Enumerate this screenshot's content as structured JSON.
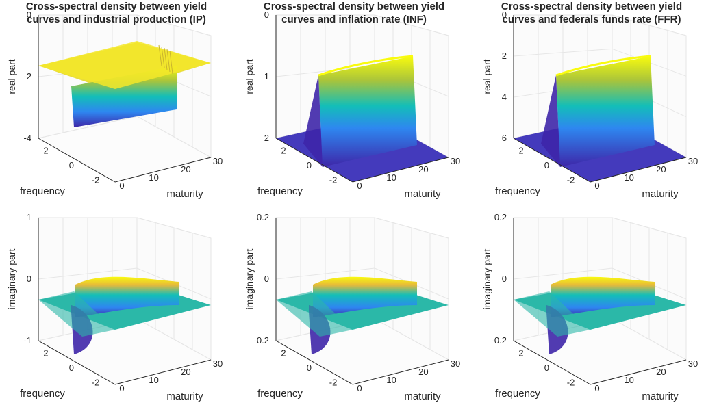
{
  "chart_data": [
    {
      "type": "surface",
      "title": [
        "Cross-spectral density between yield",
        "curves and industrial production (IP)"
      ],
      "zlabel": "real part",
      "xlabel": "maturity",
      "ylabel": "frequency",
      "xticks": [
        "0",
        "10",
        "20",
        "30"
      ],
      "yticks": [
        "2",
        "0",
        "-2"
      ],
      "zticks": [
        "0",
        "-2",
        "-4"
      ],
      "xlim": [
        0,
        30
      ],
      "ylim": [
        -3.14,
        3.14
      ],
      "zlim": [
        -4,
        0
      ],
      "band": {
        "frequency_range": [
          -0.5,
          0.5
        ],
        "floor": 0,
        "peak": -3.5,
        "profile": "dip"
      },
      "grid": true
    },
    {
      "type": "surface",
      "title": [
        "Cross-spectral density between yield",
        "curves and inflation rate (INF)"
      ],
      "zlabel": "real part",
      "xlabel": "maturity",
      "ylabel": "frequency",
      "xticks": [
        "0",
        "10",
        "20",
        "30"
      ],
      "yticks": [
        "2",
        "0",
        "-2"
      ],
      "zticks": [
        "0",
        "1",
        "2"
      ],
      "xlim": [
        0,
        30
      ],
      "ylim": [
        -3.14,
        3.14
      ],
      "zlim": [
        0,
        2
      ],
      "band": {
        "frequency_range": [
          -0.5,
          0.5
        ],
        "floor": 0,
        "peak": 1.6,
        "profile": "plateau"
      },
      "grid": true
    },
    {
      "type": "surface",
      "title": [
        "Cross-spectral density between yield",
        "curves and federals funds rate (FFR)"
      ],
      "zlabel": "real part",
      "xlabel": "maturity",
      "ylabel": "frequency",
      "xticks": [
        "0",
        "10",
        "20",
        "30"
      ],
      "yticks": [
        "2",
        "0",
        "-2"
      ],
      "zticks": [
        "0",
        "2",
        "4",
        "6"
      ],
      "xlim": [
        0,
        30
      ],
      "ylim": [
        -3.14,
        3.14
      ],
      "zlim": [
        0,
        6
      ],
      "band": {
        "frequency_range": [
          -0.5,
          0.5
        ],
        "floor": 0,
        "peak": 3.5,
        "profile": "plateau"
      },
      "grid": true
    },
    {
      "type": "surface",
      "title": [],
      "zlabel": "imaginary part",
      "xlabel": "maturity",
      "ylabel": "frequency",
      "xticks": [
        "0",
        "10",
        "20",
        "30"
      ],
      "yticks": [
        "2",
        "0",
        "-2"
      ],
      "zticks": [
        "1",
        "0",
        "-1"
      ],
      "xlim": [
        0,
        30
      ],
      "ylim": [
        -3.14,
        3.14
      ],
      "zlim": [
        -1.3,
        1.3
      ],
      "band": {
        "frequency_range": [
          -0.5,
          0.5
        ],
        "floor": 0,
        "peak": 1.0,
        "profile": "odd"
      },
      "grid": true
    },
    {
      "type": "surface",
      "title": [],
      "zlabel": "imaginary part",
      "xlabel": "maturity",
      "ylabel": "frequency",
      "xticks": [
        "0",
        "10",
        "20",
        "30"
      ],
      "yticks": [
        "2",
        "0",
        "-2"
      ],
      "zticks": [
        "0.2",
        "0",
        "-0.2"
      ],
      "xlim": [
        0,
        30
      ],
      "ylim": [
        -3.14,
        3.14
      ],
      "zlim": [
        -0.22,
        0.22
      ],
      "band": {
        "frequency_range": [
          -0.5,
          0.5
        ],
        "floor": 0,
        "peak": 0.14,
        "profile": "odd"
      },
      "grid": true
    },
    {
      "type": "surface",
      "title": [],
      "zlabel": "imaginary part",
      "xlabel": "maturity",
      "ylabel": "frequency",
      "xticks": [
        "0",
        "10",
        "20",
        "30"
      ],
      "yticks": [
        "2",
        "0",
        "-2"
      ],
      "zticks": [
        "0.2",
        "0",
        "-0.2"
      ],
      "xlim": [
        0,
        30
      ],
      "ylim": [
        -3.14,
        3.14
      ],
      "zlim": [
        -0.22,
        0.22
      ],
      "band": {
        "frequency_range": [
          -0.5,
          0.5
        ],
        "floor": 0,
        "peak": 0.18,
        "profile": "odd"
      },
      "grid": true
    }
  ],
  "colors": {
    "parula_low": "#3e26a8",
    "parula_mid": "#13beb8",
    "parula_high": "#f9fb0e",
    "axis": "#262626",
    "grid": "#e6e6e6",
    "flat_teal": "#2bb8a8"
  }
}
